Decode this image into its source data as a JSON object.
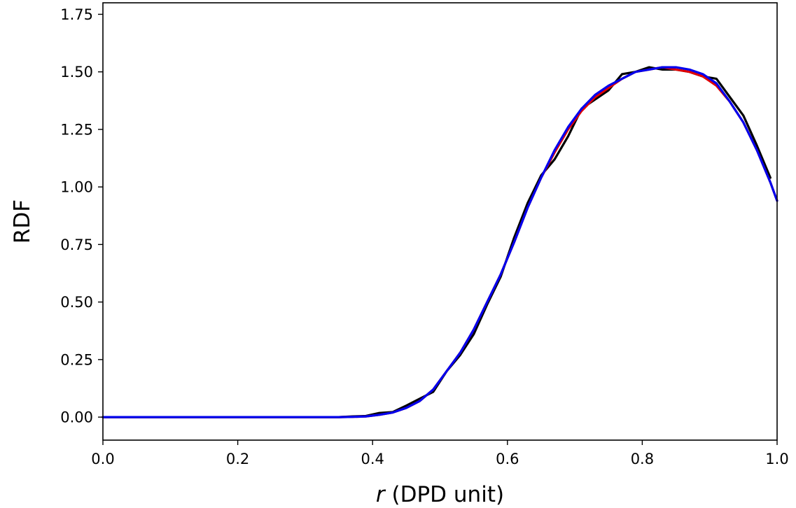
{
  "chart_data": {
    "type": "line",
    "title": "",
    "xlabel_var": "r",
    "xlabel_rest": " (DPD unit)",
    "ylabel": "RDF",
    "xlim": [
      0.0,
      1.0
    ],
    "ylim": [
      -0.1,
      1.8
    ],
    "xticks": [
      {
        "value": 0.0,
        "label": "0.0"
      },
      {
        "value": 0.2,
        "label": "0.2"
      },
      {
        "value": 0.4,
        "label": "0.4"
      },
      {
        "value": 0.6,
        "label": "0.6"
      },
      {
        "value": 0.8,
        "label": "0.8"
      },
      {
        "value": 1.0,
        "label": "1.0"
      }
    ],
    "yticks": [
      {
        "value": 0.0,
        "label": "0.00"
      },
      {
        "value": 0.25,
        "label": "0.25"
      },
      {
        "value": 0.5,
        "label": "0.50"
      },
      {
        "value": 0.75,
        "label": "0.75"
      },
      {
        "value": 1.0,
        "label": "1.00"
      },
      {
        "value": 1.25,
        "label": "1.25"
      },
      {
        "value": 1.5,
        "label": "1.50"
      },
      {
        "value": 1.75,
        "label": "1.75"
      }
    ],
    "grid": false,
    "legend": "none",
    "series": [
      {
        "color": "#000000",
        "x": [
          0.0,
          0.05,
          0.1,
          0.15,
          0.2,
          0.25,
          0.3,
          0.35,
          0.37,
          0.39,
          0.41,
          0.43,
          0.45,
          0.47,
          0.49,
          0.51,
          0.53,
          0.55,
          0.57,
          0.59,
          0.61,
          0.63,
          0.65,
          0.67,
          0.69,
          0.71,
          0.73,
          0.75,
          0.77,
          0.79,
          0.81,
          0.83,
          0.85,
          0.87,
          0.89,
          0.91,
          0.93,
          0.95,
          0.97,
          0.99
        ],
        "y": [
          0.0,
          0.0,
          0.0,
          0.0,
          0.0,
          0.0,
          0.0,
          0.0,
          0.003,
          0.005,
          0.018,
          0.022,
          0.05,
          0.08,
          0.11,
          0.2,
          0.27,
          0.36,
          0.49,
          0.61,
          0.78,
          0.93,
          1.05,
          1.12,
          1.22,
          1.34,
          1.38,
          1.42,
          1.49,
          1.5,
          1.52,
          1.51,
          1.51,
          1.5,
          1.48,
          1.47,
          1.39,
          1.31,
          1.18,
          1.04
        ]
      },
      {
        "color": "#e00000",
        "x": [
          0.0,
          0.05,
          0.1,
          0.15,
          0.2,
          0.25,
          0.3,
          0.35,
          0.37,
          0.39,
          0.41,
          0.43,
          0.45,
          0.47,
          0.49,
          0.51,
          0.53,
          0.55,
          0.57,
          0.59,
          0.61,
          0.63,
          0.65,
          0.67,
          0.69,
          0.71,
          0.73,
          0.75,
          0.77,
          0.79,
          0.81,
          0.83,
          0.85,
          0.87,
          0.89,
          0.91,
          0.93,
          0.95,
          0.97,
          0.99,
          1.0
        ],
        "y": [
          0.0,
          0.0,
          0.0,
          0.0,
          0.0,
          0.0,
          0.0,
          0.0,
          0.001,
          0.003,
          0.01,
          0.02,
          0.04,
          0.07,
          0.12,
          0.2,
          0.28,
          0.38,
          0.5,
          0.62,
          0.76,
          0.91,
          1.04,
          1.15,
          1.25,
          1.33,
          1.39,
          1.43,
          1.47,
          1.5,
          1.51,
          1.52,
          1.51,
          1.5,
          1.48,
          1.44,
          1.37,
          1.28,
          1.16,
          1.02,
          0.94
        ]
      },
      {
        "color": "#0000ee",
        "x": [
          0.0,
          0.05,
          0.1,
          0.15,
          0.2,
          0.25,
          0.3,
          0.35,
          0.37,
          0.39,
          0.41,
          0.43,
          0.45,
          0.47,
          0.49,
          0.51,
          0.53,
          0.55,
          0.57,
          0.59,
          0.61,
          0.63,
          0.65,
          0.67,
          0.69,
          0.71,
          0.73,
          0.75,
          0.77,
          0.79,
          0.81,
          0.83,
          0.85,
          0.87,
          0.89,
          0.91,
          0.93,
          0.95,
          0.97,
          0.99,
          1.0
        ],
        "y": [
          0.0,
          0.0,
          0.0,
          0.0,
          0.0,
          0.0,
          0.0,
          0.0,
          0.001,
          0.003,
          0.01,
          0.02,
          0.04,
          0.07,
          0.12,
          0.2,
          0.28,
          0.38,
          0.5,
          0.62,
          0.76,
          0.91,
          1.04,
          1.16,
          1.26,
          1.34,
          1.4,
          1.44,
          1.47,
          1.5,
          1.51,
          1.52,
          1.52,
          1.51,
          1.49,
          1.45,
          1.37,
          1.28,
          1.16,
          1.02,
          0.94
        ]
      }
    ]
  }
}
